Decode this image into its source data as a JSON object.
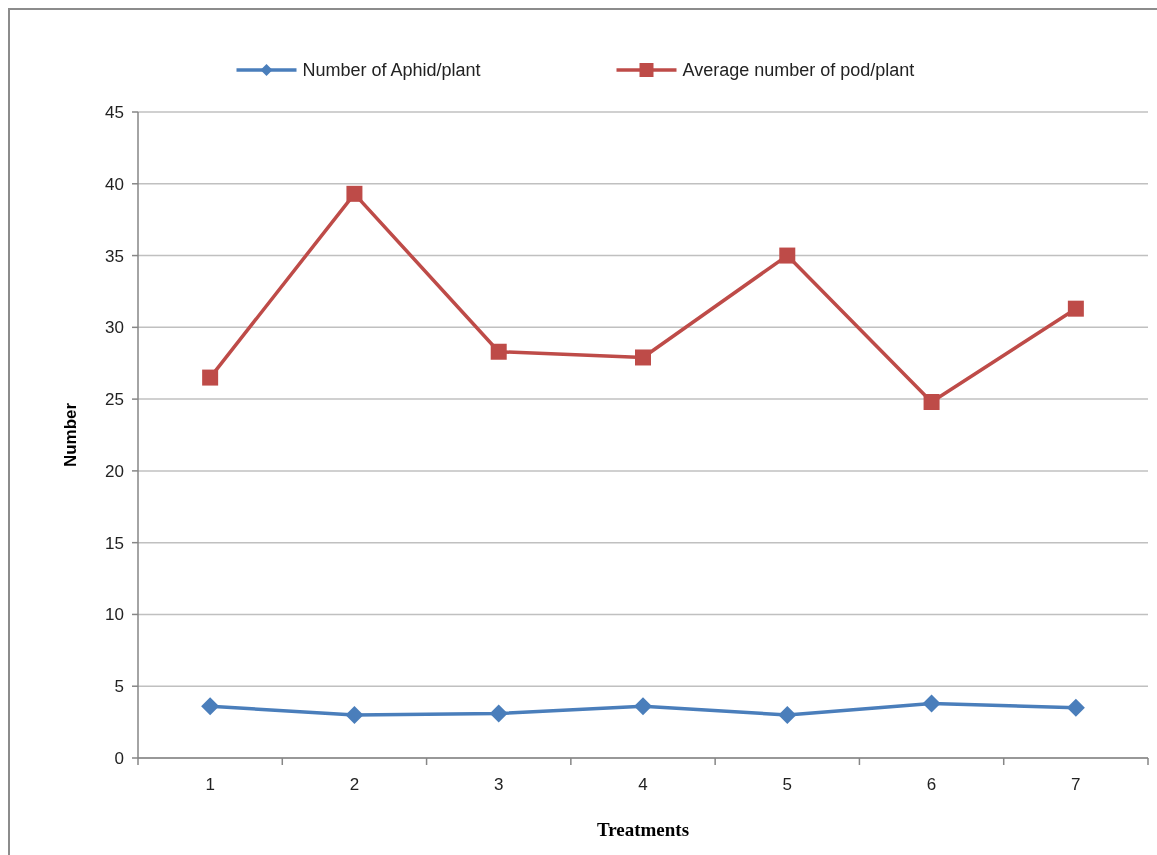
{
  "chart_data": {
    "type": "line",
    "xlabel": "Treatments",
    "ylabel": "Number",
    "categories": [
      "1",
      "2",
      "3",
      "4",
      "5",
      "6",
      "7"
    ],
    "series": [
      {
        "name": "Number of Aphid/plant",
        "color": "#4a7ebb",
        "marker": "diamond",
        "values": [
          3.6,
          3.0,
          3.1,
          3.6,
          3.0,
          3.8,
          3.5
        ]
      },
      {
        "name": "Average number of pod/plant",
        "color": "#be4b48",
        "marker": "square",
        "values": [
          26.5,
          39.3,
          28.3,
          27.9,
          35.0,
          24.8,
          31.3
        ]
      }
    ],
    "ylim": [
      0,
      45
    ],
    "yticks": [
      0,
      5,
      10,
      15,
      20,
      25,
      30,
      35,
      40,
      45
    ],
    "grid": "y",
    "legend": "top"
  }
}
